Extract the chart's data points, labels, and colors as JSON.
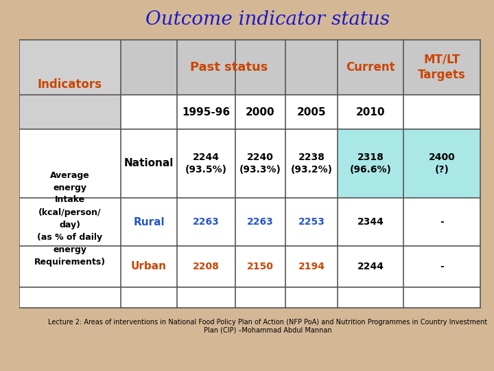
{
  "title": "Outcome indicator status",
  "title_color": "#1a1acc",
  "title_fontsize": 20,
  "background_color": "#d4b896",
  "header1_text": "Indicators",
  "header1_color": "#cc4400",
  "header2_text": "Past status",
  "header2_color": "#cc4400",
  "header3_text": "Current",
  "header3_color": "#cc4400",
  "header4_text": "MT/LT\nTargets",
  "header4_color": "#cc4400",
  "subheader_years": [
    "1995-96",
    "2000",
    "2005",
    "2010"
  ],
  "subheader_color": "#000000",
  "indicator_label": "Average\nenergy\nIntake\n(kcal/person/\nday)\n(as % of daily\nenergy\nRequirements)",
  "indicator_label_color": "#000000",
  "rows": [
    {
      "label": "National",
      "label_color": "#000000",
      "values": [
        "2244\n(93.5%)",
        "2240\n(93.3%)",
        "2238\n(93.2%)",
        "2318\n(96.6%)",
        "2400\n(?)"
      ],
      "value_colors": [
        "#000000",
        "#000000",
        "#000000",
        "#000000",
        "#000000"
      ],
      "highlight_current": true
    },
    {
      "label": "Rural",
      "label_color": "#2255cc",
      "values": [
        "2263",
        "2263",
        "2253",
        "2344",
        "-"
      ],
      "value_colors": [
        "#2255cc",
        "#2255cc",
        "#2255cc",
        "#000000",
        "#000000"
      ],
      "highlight_current": false
    },
    {
      "label": "Urban",
      "label_color": "#cc4400",
      "values": [
        "2208",
        "2150",
        "2194",
        "2244",
        "-"
      ],
      "value_colors": [
        "#cc4400",
        "#cc4400",
        "#cc4400",
        "#000000",
        "#000000"
      ],
      "highlight_current": false
    }
  ],
  "footer_text": "Lecture 2: Areas of interventions in National Food Policy Plan of Action (NFP PoA) and Nutrition Programmes in Country Investment\nPlan (CIP) –Mohammad Abdul Mannan",
  "footer_color": "#000000",
  "footer_fontsize": 7,
  "cyan_bg": "#aae8e8",
  "header_gray": "#c8c8c8",
  "ind_gray": "#d0d0d0"
}
